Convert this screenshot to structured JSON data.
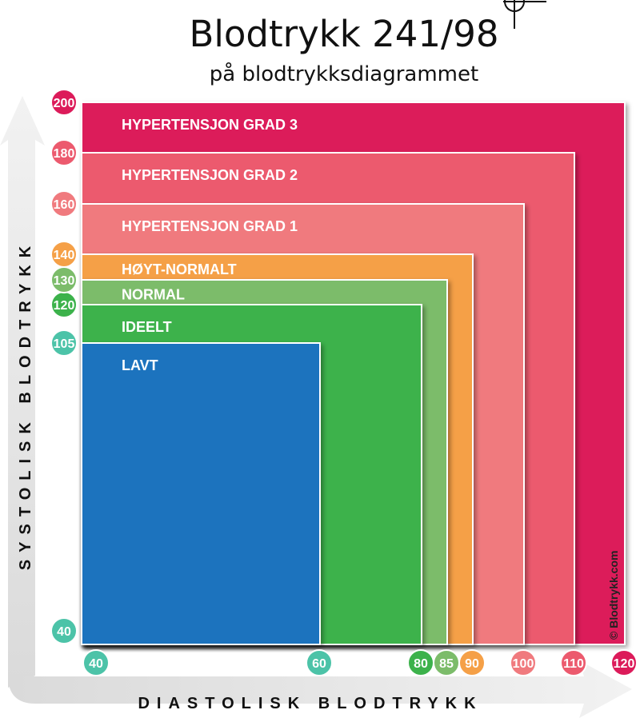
{
  "title": "Blodtrykk 241/98",
  "subtitle": "på blodtrykksdiagrammet",
  "copyright": "© Blodtrykk.com",
  "chart_data": {
    "type": "area",
    "title": "Blodtrykk 241/98",
    "subtitle": "på blodtrykksdiagrammet",
    "xlabel": "DIASTOLISK BLODTRYKK",
    "ylabel": "SYSTOLISK BLODTRYKK",
    "x_ticks": [
      40,
      60,
      80,
      85,
      90,
      100,
      110,
      120
    ],
    "y_ticks": [
      40,
      105,
      120,
      130,
      140,
      160,
      180,
      200
    ],
    "zones": [
      {
        "label": "HYPERTENSJON GRAD 3",
        "systolic_max": 200,
        "diastolic_max": 120,
        "color": "#dc1b5a"
      },
      {
        "label": "HYPERTENSJON GRAD 2",
        "systolic_max": 180,
        "diastolic_max": 110,
        "color": "#ec5a6e"
      },
      {
        "label": "HYPERTENSJON GRAD 1",
        "systolic_max": 160,
        "diastolic_max": 100,
        "color": "#f07a7e"
      },
      {
        "label": "HØYT-NORMALT",
        "systolic_max": 140,
        "diastolic_max": 90,
        "color": "#f5a047"
      },
      {
        "label": "NORMAL",
        "systolic_max": 130,
        "diastolic_max": 85,
        "color": "#7cbc6a"
      },
      {
        "label": "IDEELT",
        "systolic_max": 120,
        "diastolic_max": 80,
        "color": "#3cb24b"
      },
      {
        "label": "LAVT",
        "systolic_max": 105,
        "diastolic_max": 60,
        "color": "#1e73be"
      }
    ],
    "x_tick_colors": [
      "#4cc3a8",
      "#4cc3a8",
      "#3cb24b",
      "#7cbc6a",
      "#f5a047",
      "#f07a7e",
      "#ec5a6e",
      "#dc1b5a"
    ],
    "y_tick_colors": [
      "#4cc3a8",
      "#4cc3a8",
      "#3cb24b",
      "#7cbc6a",
      "#f5a047",
      "#f07a7e",
      "#ec5a6e",
      "#dc1b5a"
    ],
    "reading": {
      "systolic": 241,
      "diastolic": 98
    }
  }
}
